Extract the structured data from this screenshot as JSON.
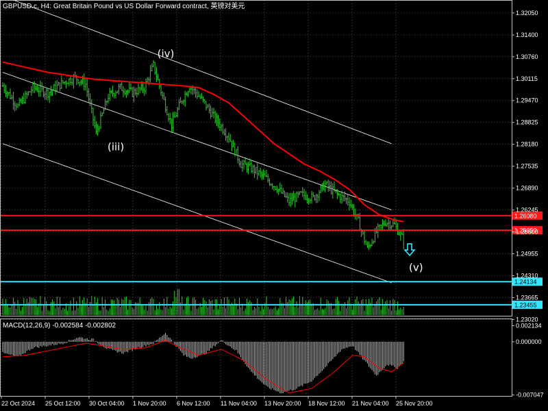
{
  "chart_data": {
    "type": "candlestick",
    "title": "GBPUSD.c, H4:  Great Britain Pound vs US Dollar Forward contract, 英镑对美元",
    "price_axis": {
      "range": [
        1.2315,
        1.3235
      ],
      "ticks": [
        "1.32050",
        "1.31400",
        "1.30760",
        "1.30115",
        "1.29470",
        "1.28825",
        "1.28180",
        "1.27535",
        "1.26890",
        "1.26245",
        "1.25600",
        "1.24955",
        "1.24310",
        "1.23665",
        "1.23020"
      ]
    },
    "date_axis": {
      "labels": [
        "22 Oct 2024",
        "25 Oct 12:00",
        "30 Oct 04:00",
        "1 Nov 20:00",
        "6 Nov 12:00",
        "11 Nov 04:00",
        "13 Nov 20:00",
        "18 Nov 12:00",
        "21 Nov 04:00",
        "25 Nov 20:00"
      ]
    },
    "series": {
      "close_anchors": [
        [
          0,
          1.299
        ],
        [
          10,
          1.293
        ],
        [
          20,
          1.2985
        ],
        [
          30,
          1.297
        ],
        [
          40,
          1.3
        ],
        [
          48,
          1.3015
        ],
        [
          55,
          1.2995
        ],
        [
          62,
          1.285
        ],
        [
          70,
          1.296
        ],
        [
          78,
          1.2985
        ],
        [
          86,
          1.297
        ],
        [
          94,
          1.2985
        ],
        [
          100,
          1.305
        ],
        [
          106,
          1.296
        ],
        [
          112,
          1.2875
        ],
        [
          118,
          1.294
        ],
        [
          124,
          1.299
        ],
        [
          132,
          1.295
        ],
        [
          140,
          1.29
        ],
        [
          150,
          1.284
        ],
        [
          158,
          1.276
        ],
        [
          166,
          1.2745
        ],
        [
          174,
          1.272
        ],
        [
          182,
          1.269
        ],
        [
          190,
          1.265
        ],
        [
          198,
          1.267
        ],
        [
          206,
          1.266
        ],
        [
          214,
          1.27
        ],
        [
          222,
          1.267
        ],
        [
          230,
          1.265
        ],
        [
          236,
          1.259
        ],
        [
          242,
          1.251
        ],
        [
          248,
          1.256
        ],
        [
          254,
          1.259
        ],
        [
          260,
          1.258
        ],
        [
          266,
          1.2535
        ]
      ],
      "ma_anchors": [
        [
          0,
          1.306
        ],
        [
          15,
          1.3045
        ],
        [
          30,
          1.303
        ],
        [
          45,
          1.302
        ],
        [
          60,
          1.301
        ],
        [
          75,
          1.3005
        ],
        [
          90,
          1.3
        ],
        [
          105,
          1.2995
        ],
        [
          120,
          1.299
        ],
        [
          130,
          1.2985
        ],
        [
          140,
          1.2965
        ],
        [
          150,
          1.294
        ],
        [
          160,
          1.29
        ],
        [
          170,
          1.286
        ],
        [
          180,
          1.282
        ],
        [
          190,
          1.279
        ],
        [
          200,
          1.276
        ],
        [
          210,
          1.274
        ],
        [
          220,
          1.2715
        ],
        [
          230,
          1.2685
        ],
        [
          240,
          1.264
        ],
        [
          250,
          1.261
        ],
        [
          260,
          1.2595
        ],
        [
          266,
          1.259
        ]
      ],
      "bar_count": 267
    },
    "channel_lines": [
      {
        "from": [
          0,
          1.3255
        ],
        "to": [
          258,
          1.282
        ]
      },
      {
        "from": [
          0,
          1.303
        ],
        "to": [
          258,
          1.2625
        ]
      },
      {
        "from": [
          0,
          1.282
        ],
        "to": [
          258,
          1.241
        ]
      }
    ],
    "horizontal_levels": [
      {
        "price": 1.2608,
        "label": "1.26080",
        "color": "#ff1a1a"
      },
      {
        "price": 1.2565,
        "label": "1.25650",
        "color": "#ff1a1a"
      },
      {
        "price": 1.24134,
        "label": "1.24134",
        "color": "#33e5ff"
      },
      {
        "price": 1.23455,
        "label": "1.23455",
        "color": "#33e5ff"
      }
    ],
    "wave_labels": [
      {
        "text": "(iv)",
        "bar": 108,
        "price": 1.3075
      },
      {
        "text": "(iii)",
        "bar": 75,
        "price": 1.28
      },
      {
        "text": "(v)",
        "bar": 275,
        "price": 1.2445
      }
    ],
    "arrow": {
      "bar": 270,
      "price": 1.2525,
      "direction": "down",
      "color": "#33e5ff"
    },
    "macd": {
      "label": "MACD(12,26,9) -0.002584 -0.002802",
      "range": [
        -0.0071,
        0.0029
      ],
      "ticks": [
        "0.002134",
        "0.000000",
        "-0.007047"
      ],
      "hist_anchors": [
        [
          0,
          -0.0015
        ],
        [
          10,
          -0.002
        ],
        [
          20,
          -0.0008
        ],
        [
          30,
          -0.0005
        ],
        [
          40,
          -0.0002
        ],
        [
          50,
          0.0006
        ],
        [
          60,
          0.0003
        ],
        [
          70,
          -0.001
        ],
        [
          80,
          -0.0015
        ],
        [
          90,
          -0.0008
        ],
        [
          100,
          -0.0002
        ],
        [
          108,
          0.0012
        ],
        [
          115,
          -0.0005
        ],
        [
          120,
          -0.0018
        ],
        [
          125,
          -0.0022
        ],
        [
          135,
          -0.0015
        ],
        [
          145,
          0.0002
        ],
        [
          155,
          -0.0012
        ],
        [
          165,
          -0.004
        ],
        [
          175,
          -0.006
        ],
        [
          185,
          -0.0068
        ],
        [
          195,
          -0.0062
        ],
        [
          205,
          -0.0052
        ],
        [
          215,
          -0.0032
        ],
        [
          225,
          -0.001
        ],
        [
          232,
          -0.0005
        ],
        [
          240,
          -0.0025
        ],
        [
          248,
          -0.0045
        ],
        [
          255,
          -0.003
        ],
        [
          262,
          -0.0035
        ],
        [
          266,
          -0.0026
        ]
      ],
      "signal_anchors": [
        [
          0,
          -0.002
        ],
        [
          15,
          -0.0018
        ],
        [
          30,
          -0.0012
        ],
        [
          45,
          -0.0006
        ],
        [
          55,
          -0.0002
        ],
        [
          65,
          -0.0005
        ],
        [
          80,
          -0.001
        ],
        [
          95,
          -0.0008
        ],
        [
          108,
          0.0002
        ],
        [
          118,
          -0.0008
        ],
        [
          130,
          -0.0018
        ],
        [
          145,
          -0.001
        ],
        [
          160,
          -0.0025
        ],
        [
          175,
          -0.005
        ],
        [
          190,
          -0.0068
        ],
        [
          205,
          -0.0062
        ],
        [
          220,
          -0.004
        ],
        [
          232,
          -0.0018
        ],
        [
          240,
          -0.002
        ],
        [
          250,
          -0.0035
        ],
        [
          258,
          -0.004
        ],
        [
          266,
          -0.0028
        ]
      ]
    },
    "grid": true
  },
  "colors": {
    "bull": "#32cd32",
    "bear": "#32cd32",
    "ma": "#ff0000",
    "channel": "#ffffff",
    "grid": "#7f7f7f",
    "volume": "#32cd32",
    "macd_hist": "#c0c0c0",
    "macd_signal": "#ff0000"
  }
}
